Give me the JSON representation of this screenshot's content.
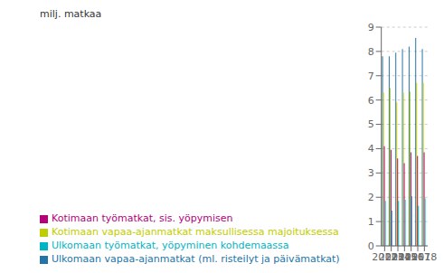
{
  "chart_data": {
    "type": "bar",
    "y_label": "milj. matkaa",
    "categories": [
      "2012",
      "2013",
      "2014",
      "2015",
      "2016",
      "2017",
      "2018"
    ],
    "series": [
      {
        "name": "Ulkomaan vapaa-ajanmatkat (ml. risteilyt ja päivämatkat)",
        "color": "#2474a8",
        "values": [
          7.8,
          7.8,
          7.95,
          8.1,
          8.2,
          8.55,
          8.1
        ]
      },
      {
        "name": "Kotimaan vapaa-ajanmatkat maksullisessa majoituksessa",
        "color": "#bfcc00",
        "values": [
          6.3,
          6.5,
          5.9,
          6.3,
          6.35,
          6.7,
          6.7
        ]
      },
      {
        "name": "Kotimaan työmatkat, sis. yöpymisen",
        "color": "#b5007a",
        "values": [
          4.1,
          3.95,
          3.6,
          3.4,
          3.85,
          3.7,
          3.85
        ]
      },
      {
        "name": "Ulkomaan työmatkat, yöpyminen kohdemaassa",
        "color": "#00b5c3",
        "values": [
          1.85,
          1.45,
          1.85,
          1.9,
          2.05,
          1.65,
          1.95
        ]
      }
    ],
    "ylim": [
      0,
      9
    ],
    "yticks": [
      0,
      1,
      2,
      3,
      4,
      5,
      6,
      7,
      8,
      9
    ],
    "grid": true,
    "legend": "bottom"
  }
}
